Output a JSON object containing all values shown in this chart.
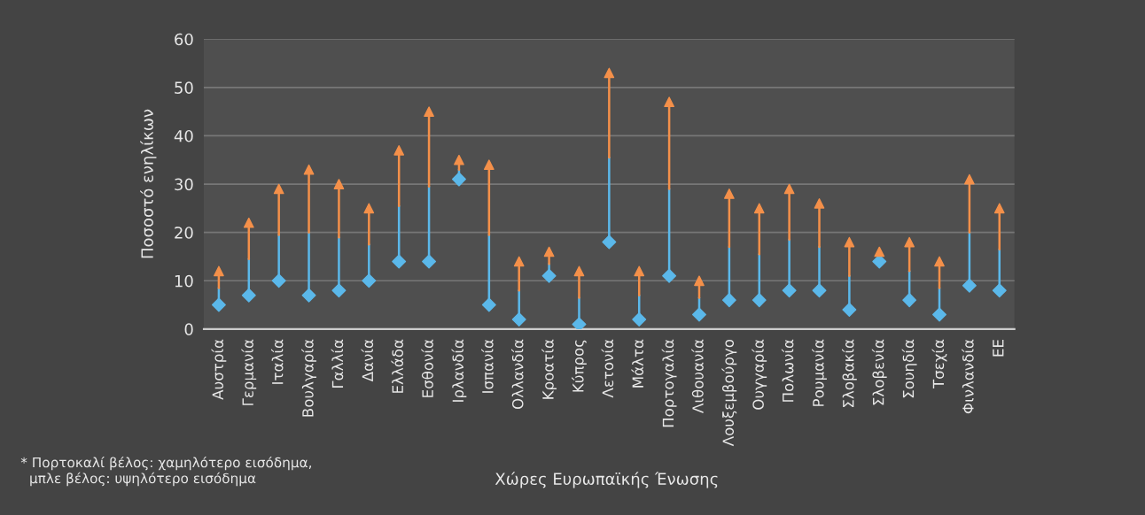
{
  "chart_data": {
    "type": "scatter",
    "xlabel": "Χώρες Ευρωπαϊκής Ένωσης",
    "ylabel": "Ποσοστό ενηλίκων",
    "categories": [
      "Αυστρία",
      "Γερμανία",
      "Ιταλία",
      "Βουλγαρία",
      "Γαλλία",
      "Δανία",
      "Ελλάδα",
      "Εσθονία",
      "Ιρλανδία",
      "Ισπανία",
      "Ολλανδία",
      "Κροατία",
      "Κύπρος",
      "Λετονία",
      "Μάλτα",
      "Πορτογαλία",
      "Λιθουανία",
      "Λουξεμβούργο",
      "Ουγγαρία",
      "Πολωνία",
      "Ρουμανία",
      "Σλοβακία",
      "Σλοβενία",
      "Σουηδία",
      "Τσεχία",
      "Φινλανδία",
      "ΕΕ"
    ],
    "series": [
      {
        "color": "#5bb8ea",
        "marker": "diamond",
        "values": [
          5,
          7,
          10,
          7,
          8,
          10,
          14,
          14,
          31,
          5,
          2,
          11,
          1,
          18,
          2,
          11,
          3,
          6,
          6,
          8,
          8,
          4,
          14,
          6,
          3,
          9,
          8
        ]
      },
      {
        "color": "#f4904a",
        "marker": "triangle",
        "values": [
          12,
          22,
          29,
          33,
          30,
          25,
          37,
          45,
          35,
          34,
          14,
          16,
          12,
          53,
          12,
          47,
          10,
          28,
          25,
          29,
          26,
          18,
          16,
          18,
          14,
          31,
          25
        ]
      }
    ],
    "ylim": [
      0,
      60
    ],
    "yticks": [
      0,
      10,
      20,
      30,
      40,
      50,
      60
    ],
    "grid": "y",
    "legend": false,
    "annotations": [
      "* Πορτοκαλί βέλος: χαμηλότερο εισόδημα,\n  μπλε βέλος: υψηλότερο εισόδημα"
    ]
  }
}
